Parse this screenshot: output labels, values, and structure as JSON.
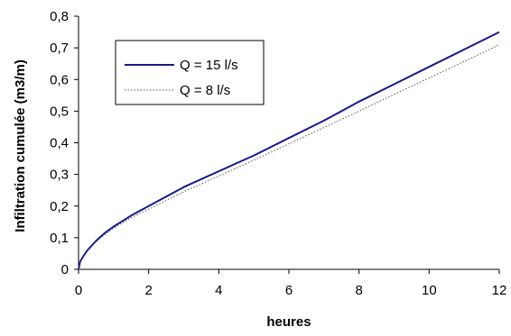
{
  "chart_data": {
    "type": "line",
    "xlabel": "heures",
    "ylabel": "Infiltration cumulée (m3/m)",
    "xlim": [
      0,
      12
    ],
    "ylim": [
      0,
      0.8
    ],
    "x_ticks": [
      "0",
      "2",
      "4",
      "6",
      "8",
      "10",
      "12"
    ],
    "y_ticks": [
      "0",
      "0,1",
      "0,2",
      "0,3",
      "0,4",
      "0,5",
      "0,6",
      "0,7",
      "0,8"
    ],
    "grid": false,
    "legend_position": "top-left",
    "series": [
      {
        "name": "Q = 15 l/s",
        "color": "#1a1a80",
        "style": "solid",
        "x": [
          0,
          0.05,
          0.1,
          0.25,
          0.5,
          0.75,
          1,
          1.5,
          2,
          3,
          4,
          5,
          6,
          7,
          8,
          9,
          10,
          11,
          12
        ],
        "y": [
          0,
          0.025,
          0.035,
          0.06,
          0.09,
          0.115,
          0.135,
          0.17,
          0.2,
          0.26,
          0.31,
          0.36,
          0.415,
          0.47,
          0.53,
          0.585,
          0.64,
          0.695,
          0.75
        ]
      },
      {
        "name": "Q = 8 l/s",
        "color": "#555555",
        "style": "dotted",
        "x": [
          0,
          0.05,
          0.1,
          0.25,
          0.5,
          0.75,
          1,
          1.5,
          2,
          3,
          4,
          5,
          6,
          7,
          8,
          9,
          10,
          11,
          12
        ],
        "y": [
          0,
          0.024,
          0.033,
          0.057,
          0.087,
          0.11,
          0.13,
          0.163,
          0.19,
          0.245,
          0.295,
          0.345,
          0.397,
          0.448,
          0.5,
          0.553,
          0.605,
          0.657,
          0.71
        ]
      }
    ]
  }
}
